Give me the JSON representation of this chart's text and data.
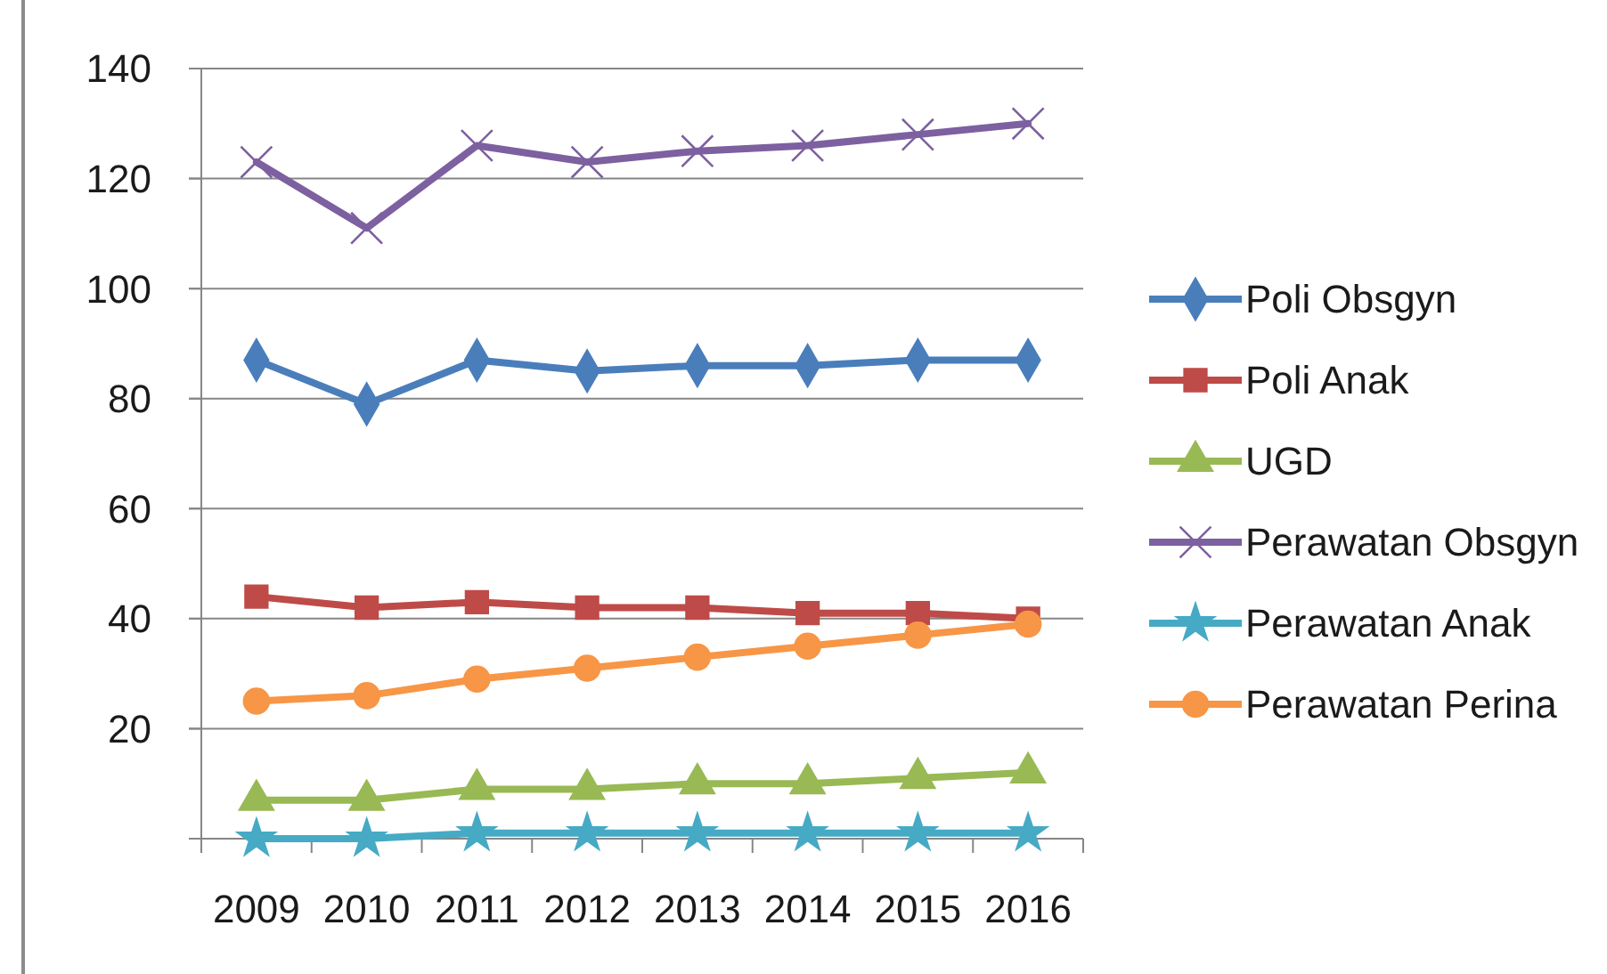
{
  "chart_data": {
    "type": "line",
    "categories": [
      "2009",
      "2010",
      "2011",
      "2012",
      "2013",
      "2014",
      "2015",
      "2016"
    ],
    "series": [
      {
        "name": "Poli Obsgyn",
        "color": "#4a7ebb",
        "marker": "diamond",
        "values": [
          87,
          79,
          87,
          85,
          86,
          86,
          87,
          87
        ]
      },
      {
        "name": "Poli Anak",
        "color": "#be4b48",
        "marker": "square",
        "values": [
          44,
          42,
          43,
          42,
          42,
          41,
          41,
          40
        ]
      },
      {
        "name": "UGD",
        "color": "#98b954",
        "marker": "triangle",
        "values": [
          7,
          7,
          9,
          9,
          10,
          10,
          11,
          12
        ]
      },
      {
        "name": "Perawatan Obsgyn",
        "color": "#7d60a0",
        "marker": "cross",
        "values": [
          123,
          111,
          126,
          123,
          125,
          126,
          128,
          130
        ]
      },
      {
        "name": "Perawatan Anak",
        "color": "#46aac5",
        "marker": "star",
        "values": [
          0,
          0,
          1,
          1,
          1,
          1,
          1,
          1
        ]
      },
      {
        "name": "Perawatan Perina",
        "color": "#f79646",
        "marker": "circle",
        "values": [
          25,
          26,
          29,
          31,
          33,
          35,
          37,
          39
        ]
      }
    ],
    "ylim": [
      0,
      140
    ],
    "yticks": [
      {
        "value": 0,
        "label": null
      },
      20,
      40,
      60,
      80,
      100,
      120,
      140
    ],
    "grid": "y",
    "legend": "right"
  }
}
